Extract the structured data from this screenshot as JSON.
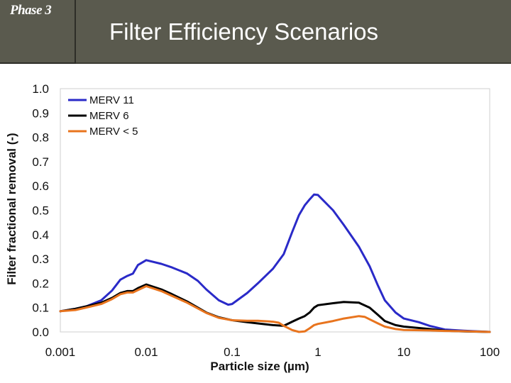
{
  "header": {
    "phase_label": "Phase 3",
    "title": "Filter Efficiency Scenarios"
  },
  "colors": {
    "header_bg": "#5a5a4e",
    "merv11": "#2a2ac8",
    "merv6": "#000000",
    "merv5": "#e8741e"
  },
  "chart_data": {
    "type": "line",
    "title": "",
    "xlabel": "Particle size (µm)",
    "ylabel": "Filter fractional removal (-)",
    "xscale": "log",
    "xlim": [
      0.001,
      100
    ],
    "ylim": [
      0,
      1
    ],
    "x_ticks": [
      "0.001",
      "0.01",
      "0.1",
      "1",
      "10",
      "100"
    ],
    "y_ticks": [
      "0.0",
      "0.1",
      "0.2",
      "0.3",
      "0.4",
      "0.5",
      "0.6",
      "0.7",
      "0.8",
      "0.9",
      "1.0"
    ],
    "grid": false,
    "legend": "top-left",
    "series": [
      {
        "name": "MERV 11",
        "color": "#2a2ac8",
        "points": [
          [
            0.001,
            0.085
          ],
          [
            0.0015,
            0.095
          ],
          [
            0.002,
            0.105
          ],
          [
            0.003,
            0.13
          ],
          [
            0.004,
            0.17
          ],
          [
            0.005,
            0.215
          ],
          [
            0.006,
            0.23
          ],
          [
            0.007,
            0.24
          ],
          [
            0.008,
            0.275
          ],
          [
            0.01,
            0.295
          ],
          [
            0.015,
            0.28
          ],
          [
            0.02,
            0.265
          ],
          [
            0.03,
            0.24
          ],
          [
            0.04,
            0.21
          ],
          [
            0.05,
            0.175
          ],
          [
            0.07,
            0.13
          ],
          [
            0.09,
            0.112
          ],
          [
            0.1,
            0.115
          ],
          [
            0.15,
            0.16
          ],
          [
            0.2,
            0.2
          ],
          [
            0.3,
            0.26
          ],
          [
            0.4,
            0.32
          ],
          [
            0.5,
            0.41
          ],
          [
            0.6,
            0.48
          ],
          [
            0.7,
            0.52
          ],
          [
            0.8,
            0.545
          ],
          [
            0.9,
            0.565
          ],
          [
            1.0,
            0.563
          ],
          [
            1.5,
            0.5
          ],
          [
            2,
            0.44
          ],
          [
            3,
            0.35
          ],
          [
            4,
            0.27
          ],
          [
            5,
            0.19
          ],
          [
            6,
            0.13
          ],
          [
            8,
            0.08
          ],
          [
            10,
            0.055
          ],
          [
            15,
            0.04
          ],
          [
            20,
            0.025
          ],
          [
            30,
            0.01
          ],
          [
            50,
            0.005
          ],
          [
            100,
            0.0
          ]
        ]
      },
      {
        "name": "MERV 6",
        "color": "#000000",
        "points": [
          [
            0.001,
            0.085
          ],
          [
            0.0015,
            0.095
          ],
          [
            0.002,
            0.105
          ],
          [
            0.003,
            0.12
          ],
          [
            0.004,
            0.14
          ],
          [
            0.005,
            0.16
          ],
          [
            0.006,
            0.168
          ],
          [
            0.007,
            0.168
          ],
          [
            0.008,
            0.18
          ],
          [
            0.01,
            0.195
          ],
          [
            0.015,
            0.175
          ],
          [
            0.02,
            0.155
          ],
          [
            0.03,
            0.125
          ],
          [
            0.05,
            0.08
          ],
          [
            0.07,
            0.06
          ],
          [
            0.1,
            0.048
          ],
          [
            0.15,
            0.04
          ],
          [
            0.2,
            0.035
          ],
          [
            0.3,
            0.028
          ],
          [
            0.4,
            0.025
          ],
          [
            0.5,
            0.042
          ],
          [
            0.6,
            0.055
          ],
          [
            0.7,
            0.065
          ],
          [
            0.8,
            0.08
          ],
          [
            0.9,
            0.1
          ],
          [
            1.0,
            0.11
          ],
          [
            1.5,
            0.118
          ],
          [
            2,
            0.123
          ],
          [
            3,
            0.12
          ],
          [
            4,
            0.1
          ],
          [
            5,
            0.07
          ],
          [
            6,
            0.045
          ],
          [
            8,
            0.028
          ],
          [
            10,
            0.022
          ],
          [
            20,
            0.012
          ],
          [
            30,
            0.005
          ],
          [
            50,
            0.002
          ],
          [
            100,
            0.0
          ]
        ]
      },
      {
        "name": "MERV < 5",
        "color": "#e8741e",
        "points": [
          [
            0.001,
            0.085
          ],
          [
            0.0015,
            0.09
          ],
          [
            0.002,
            0.1
          ],
          [
            0.003,
            0.115
          ],
          [
            0.004,
            0.135
          ],
          [
            0.005,
            0.155
          ],
          [
            0.006,
            0.162
          ],
          [
            0.007,
            0.162
          ],
          [
            0.008,
            0.172
          ],
          [
            0.01,
            0.188
          ],
          [
            0.015,
            0.168
          ],
          [
            0.02,
            0.148
          ],
          [
            0.03,
            0.12
          ],
          [
            0.05,
            0.078
          ],
          [
            0.07,
            0.058
          ],
          [
            0.1,
            0.048
          ],
          [
            0.15,
            0.046
          ],
          [
            0.2,
            0.046
          ],
          [
            0.3,
            0.042
          ],
          [
            0.35,
            0.038
          ],
          [
            0.4,
            0.025
          ],
          [
            0.5,
            0.008
          ],
          [
            0.6,
            0.0
          ],
          [
            0.7,
            0.002
          ],
          [
            0.8,
            0.015
          ],
          [
            0.9,
            0.028
          ],
          [
            1.0,
            0.033
          ],
          [
            1.5,
            0.045
          ],
          [
            2,
            0.055
          ],
          [
            3,
            0.065
          ],
          [
            3.5,
            0.062
          ],
          [
            4,
            0.052
          ],
          [
            5,
            0.035
          ],
          [
            6,
            0.022
          ],
          [
            8,
            0.012
          ],
          [
            10,
            0.008
          ],
          [
            20,
            0.006
          ],
          [
            30,
            0.004
          ],
          [
            50,
            0.003
          ],
          [
            100,
            0.0
          ]
        ]
      }
    ]
  }
}
